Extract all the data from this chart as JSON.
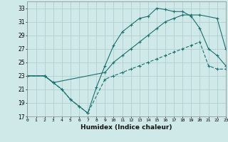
{
  "xlabel": "Humidex (Indice chaleur)",
  "bg_color": "#cfe8e8",
  "grid_color": "#b0d0d0",
  "line_color": "#1a7070",
  "xlim": [
    0,
    23
  ],
  "ylim": [
    17,
    34
  ],
  "xticks": [
    0,
    1,
    2,
    3,
    4,
    5,
    6,
    7,
    8,
    9,
    10,
    11,
    12,
    13,
    14,
    15,
    16,
    17,
    18,
    19,
    20,
    21,
    22,
    23
  ],
  "yticks": [
    17,
    19,
    21,
    23,
    25,
    27,
    29,
    31,
    33
  ],
  "line1_x": [
    0,
    2,
    3,
    4,
    5,
    6,
    7,
    8,
    9,
    10,
    11,
    12,
    13,
    14,
    15,
    16,
    17,
    18,
    19,
    20,
    21,
    22,
    23
  ],
  "line1_y": [
    23,
    23,
    22,
    21,
    19.5,
    18.5,
    17.5,
    21.3,
    24.5,
    27.5,
    29.5,
    30.5,
    31.5,
    31.8,
    33,
    32.8,
    32.5,
    32.5,
    31.8,
    30,
    27,
    26,
    24.5
  ],
  "line2_x": [
    0,
    2,
    3,
    9,
    10,
    11,
    12,
    13,
    14,
    15,
    16,
    17,
    18,
    19,
    20,
    22,
    23
  ],
  "line2_y": [
    23,
    23,
    22,
    23.5,
    25,
    26,
    27,
    28,
    29,
    30,
    31,
    31.5,
    32,
    32,
    32,
    31.5,
    27
  ],
  "line3_x": [
    0,
    2,
    3,
    4,
    5,
    6,
    7,
    9,
    10,
    11,
    12,
    13,
    14,
    15,
    16,
    17,
    18,
    19,
    20,
    21,
    22,
    23
  ],
  "line3_y": [
    23,
    23,
    22,
    21,
    19.5,
    18.5,
    17.5,
    22.5,
    23,
    23.5,
    24,
    24.5,
    25,
    25.5,
    26,
    26.5,
    27,
    27.5,
    28,
    24.5,
    24,
    24
  ]
}
